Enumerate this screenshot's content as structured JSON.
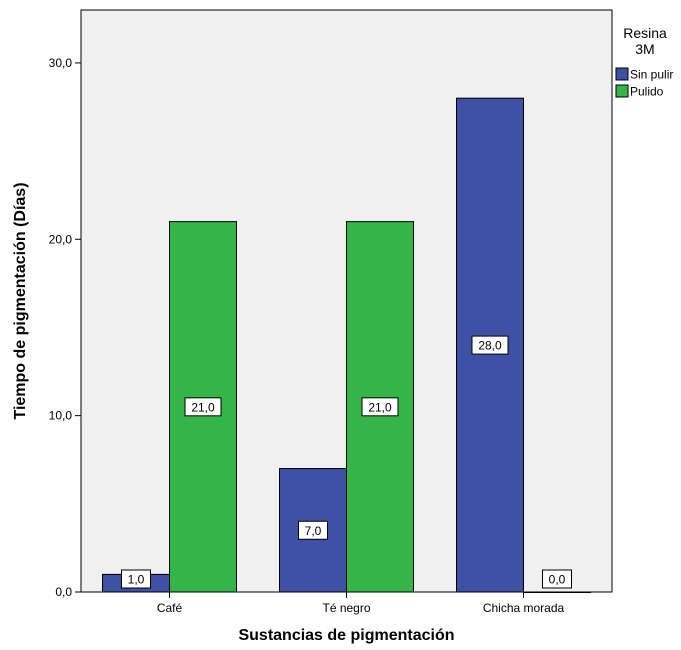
{
  "chart_data": {
    "type": "bar",
    "xlabel": "Sustancias de pigmentación",
    "ylabel": "Tiempo de pigmentación (Días)",
    "categories": [
      "Café",
      "Té negro",
      "Chicha morada"
    ],
    "series": [
      {
        "name": "Sin pulir",
        "values": [
          1.0,
          7.0,
          28.0
        ],
        "labels": [
          "1,0",
          "7,0",
          "28,0"
        ],
        "color": "#3f51a5"
      },
      {
        "name": "Pulido",
        "values": [
          21.0,
          21.0,
          0.0
        ],
        "labels": [
          "21,0",
          "21,0",
          "0,0"
        ],
        "color": "#33b548"
      }
    ],
    "ylim": [
      0,
      33
    ],
    "yticks": [
      0,
      10,
      20,
      30
    ],
    "ytick_labels": [
      "0,0",
      "10,0",
      "20,0",
      "30,0"
    ],
    "grid": false,
    "legend": {
      "title_lines": [
        "Resina",
        "3M"
      ],
      "position": "right"
    },
    "plot_background": "#f0f0f0"
  }
}
